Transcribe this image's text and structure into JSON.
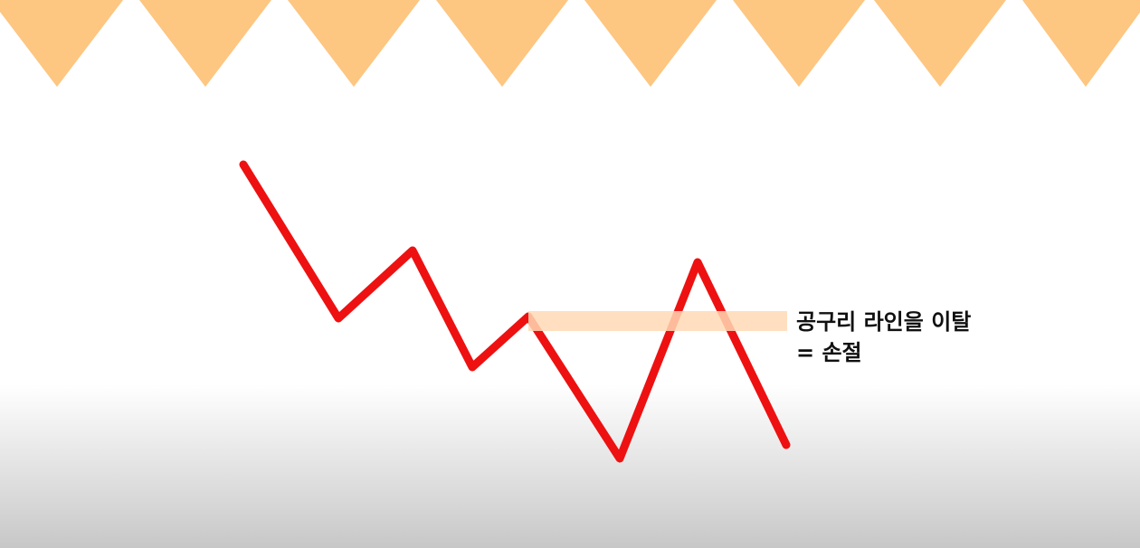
{
  "colors": {
    "price_line": "#ee1111",
    "neckline_band": "#ffd9b5",
    "top_triangles": "#fdc681"
  },
  "annotation": {
    "line1": "공구리 라인을 이탈",
    "line2": "= 손절"
  }
}
